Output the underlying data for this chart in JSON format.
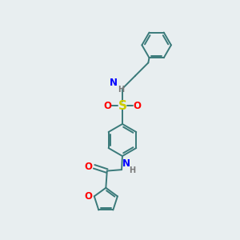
{
  "background_color": "#e8eef0",
  "bond_color": "#3a7a7a",
  "atom_colors": {
    "N": "#0000ff",
    "O": "#ff0000",
    "S": "#cccc00",
    "H": "#7a7a7a",
    "C": "#3a7a7a"
  },
  "figsize": [
    3.0,
    3.0
  ],
  "dpi": 100
}
